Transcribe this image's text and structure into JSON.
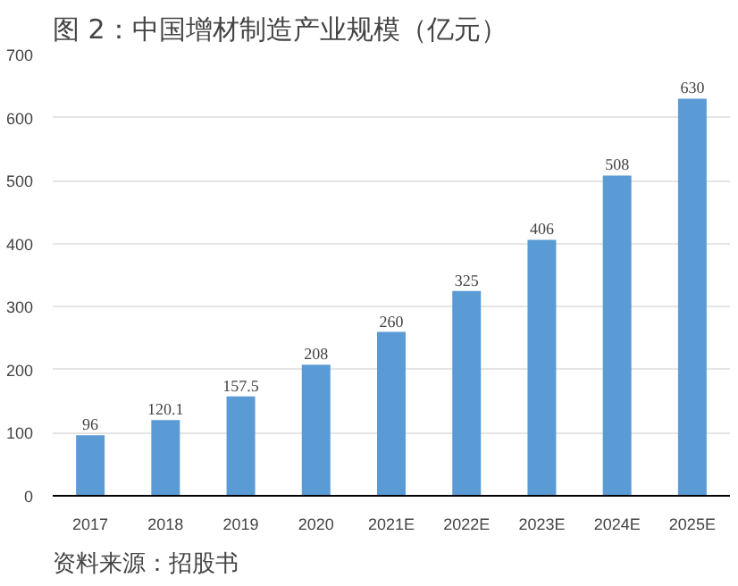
{
  "chart_data": {
    "type": "bar",
    "title": "图 2：中国增材制造产业规模（亿元）",
    "categories": [
      "2017",
      "2018",
      "2019",
      "2020",
      "2021E",
      "2022E",
      "2023E",
      "2024E",
      "2025E"
    ],
    "values": [
      96,
      120.1,
      157.5,
      208,
      260,
      325,
      406,
      508,
      630
    ],
    "color": "#5b9bd5",
    "ylim": [
      0,
      700
    ],
    "yticks": [
      0,
      100,
      200,
      300,
      400,
      500,
      600,
      700
    ],
    "grid": "y",
    "data_labels": true,
    "annotations": [
      "资料来源：招股书"
    ]
  }
}
